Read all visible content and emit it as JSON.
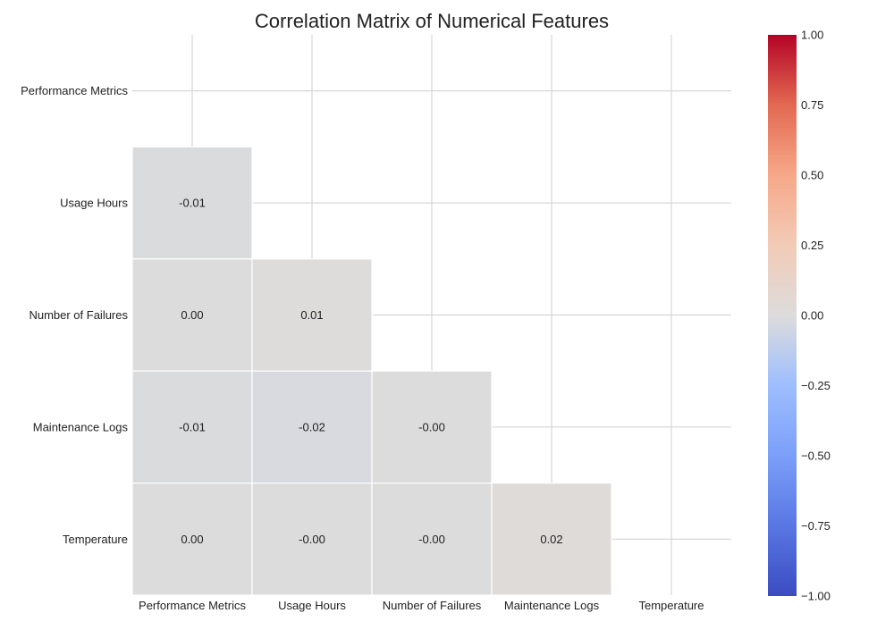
{
  "chart_data": {
    "type": "heatmap",
    "title": "Correlation Matrix of Numerical Features",
    "mask": "upper-triangle-including-diagonal",
    "x_categories": [
      "Performance Metrics",
      "Usage Hours",
      "Number of Failures",
      "Maintenance Logs",
      "Temperature"
    ],
    "y_categories": [
      "Performance Metrics",
      "Usage Hours",
      "Number of Failures",
      "Maintenance Logs",
      "Temperature"
    ],
    "cells": [
      {
        "row": 1,
        "col": 0,
        "value": -0.01,
        "label": "-0.01"
      },
      {
        "row": 2,
        "col": 0,
        "value": 0.0,
        "label": "0.00"
      },
      {
        "row": 2,
        "col": 1,
        "value": 0.01,
        "label": "0.01"
      },
      {
        "row": 3,
        "col": 0,
        "value": -0.01,
        "label": "-0.01"
      },
      {
        "row": 3,
        "col": 1,
        "value": -0.02,
        "label": "-0.02"
      },
      {
        "row": 3,
        "col": 2,
        "value": -0.0,
        "label": "-0.00"
      },
      {
        "row": 4,
        "col": 0,
        "value": 0.0,
        "label": "0.00"
      },
      {
        "row": 4,
        "col": 1,
        "value": -0.0,
        "label": "-0.00"
      },
      {
        "row": 4,
        "col": 2,
        "value": -0.0,
        "label": "-0.00"
      },
      {
        "row": 4,
        "col": 3,
        "value": 0.02,
        "label": "0.02"
      }
    ],
    "colorbar": {
      "colormap": "coolwarm",
      "vmin": -1.0,
      "vmax": 1.0,
      "ticks": [
        1.0,
        0.75,
        0.5,
        0.25,
        0.0,
        -0.25,
        -0.5,
        -0.75,
        -1.0
      ],
      "tick_labels": [
        "1.00",
        "0.75",
        "0.50",
        "0.25",
        "0.00",
        "−0.25",
        "−0.50",
        "−0.75",
        "−1.00"
      ]
    },
    "grid": true
  }
}
